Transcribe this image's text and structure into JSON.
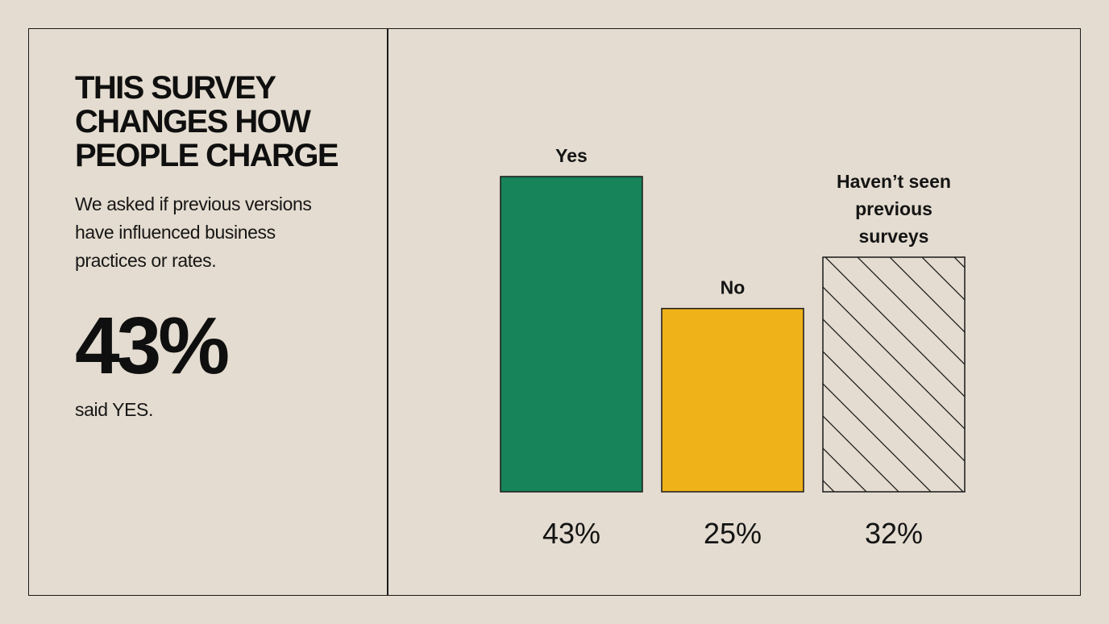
{
  "headline": {
    "lines": [
      "THIS SURVEY",
      "CHANGES HOW",
      "PEOPLE CHARGE"
    ]
  },
  "subtitle": {
    "lines": [
      "We asked if previous versions",
      "have influenced business",
      "practices or rates."
    ]
  },
  "big_stat": {
    "value": "43%",
    "caption": "said YES."
  },
  "colors": {
    "background": "#e4dcd0",
    "yes": "#17845a",
    "no": "#f0b219",
    "outline": "#1a1a1a"
  },
  "chart_data": {
    "type": "bar",
    "categories": [
      "Yes",
      "No",
      "Haven’t seen previous surveys"
    ],
    "category_label_lines": [
      [
        "Yes"
      ],
      [
        "No"
      ],
      [
        "Haven’t seen",
        "previous",
        "surveys"
      ]
    ],
    "values": [
      43,
      25,
      32
    ],
    "value_labels": [
      "43%",
      "25%",
      "32%"
    ],
    "fills": [
      "yes-solid",
      "no-solid",
      "hatched"
    ],
    "ylim": [
      0,
      43
    ],
    "grid": false,
    "legend": "none"
  }
}
